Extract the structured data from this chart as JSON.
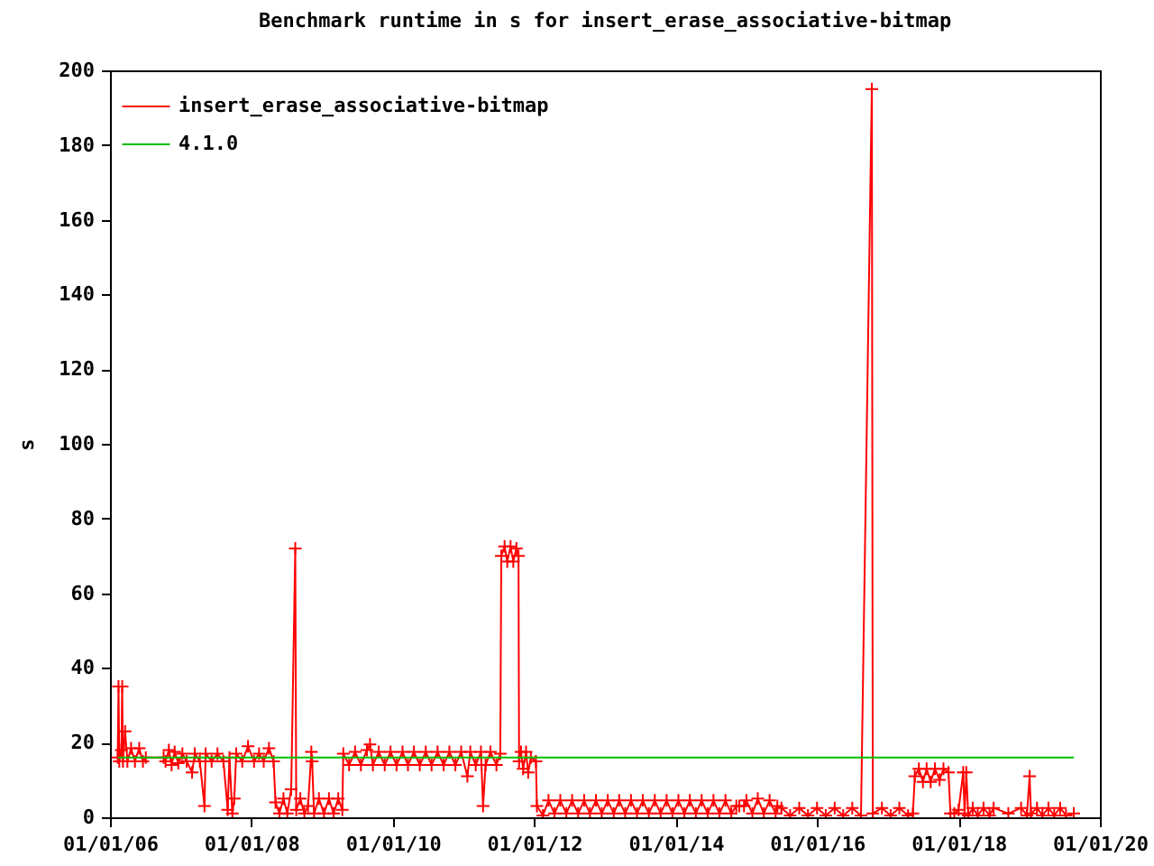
{
  "chart_data": {
    "type": "line",
    "title": "Benchmark runtime in s for insert_erase_associative-bitmap",
    "ylabel": "s",
    "xlim": [
      "2006-01-01",
      "2020-01-01"
    ],
    "xticks": [
      {
        "value": "2006-01-01",
        "label": "01/01/06"
      },
      {
        "value": "2008-01-01",
        "label": "01/01/08"
      },
      {
        "value": "2010-01-01",
        "label": "01/01/10"
      },
      {
        "value": "2012-01-01",
        "label": "01/01/12"
      },
      {
        "value": "2014-01-01",
        "label": "01/01/14"
      },
      {
        "value": "2016-01-01",
        "label": "01/01/16"
      },
      {
        "value": "2018-01-01",
        "label": "01/01/18"
      },
      {
        "value": "2020-01-01",
        "label": "01/01/20"
      }
    ],
    "ylim": [
      0,
      200
    ],
    "yticks": [
      0,
      20,
      40,
      60,
      80,
      100,
      120,
      140,
      160,
      180,
      200
    ],
    "grid": false,
    "legend": "top left",
    "marker": "cross",
    "line_style": "solid",
    "series": [
      {
        "name": "insert_erase_associative-bitmap",
        "color": "#ff0000",
        "x": [
          "2006-02-10",
          "2006-02-14",
          "2006-02-18",
          "2006-03-01",
          "2006-03-05",
          "2006-03-09",
          "2006-03-20",
          "2006-04-01",
          "2006-04-20",
          "2006-05-10",
          "2006-06-01",
          "2006-06-20",
          "2006-07-05",
          "2006-10-05",
          "2006-10-15",
          "2006-11-01",
          "2006-11-15",
          "2006-12-01",
          "2006-12-20",
          "2007-01-10",
          "2007-02-01",
          "2007-03-01",
          "2007-03-15",
          "2007-04-10",
          "2007-05-04",
          "2007-05-10",
          "2007-06-10",
          "2007-07-10",
          "2007-08-10",
          "2007-09-01",
          "2007-09-10",
          "2007-09-25",
          "2007-10-05",
          "2007-10-15",
          "2007-11-15",
          "2007-12-15",
          "2008-01-15",
          "2008-02-10",
          "2008-03-05",
          "2008-04-01",
          "2008-04-25",
          "2008-05-05",
          "2008-05-25",
          "2008-06-15",
          "2008-07-05",
          "2008-07-25",
          "2008-08-15",
          "2008-08-20",
          "2008-09-10",
          "2008-10-01",
          "2008-10-20",
          "2008-11-06",
          "2008-11-10",
          "2008-11-20",
          "2008-12-15",
          "2009-01-10",
          "2009-02-05",
          "2009-03-01",
          "2009-03-25",
          "2009-04-15",
          "2009-04-20",
          "2009-05-20",
          "2009-06-20",
          "2009-07-20",
          "2009-08-20",
          "2009-09-05",
          "2009-09-20",
          "2009-10-20",
          "2009-11-20",
          "2009-12-20",
          "2010-01-20",
          "2010-02-20",
          "2010-03-20",
          "2010-04-20",
          "2010-05-20",
          "2010-06-20",
          "2010-07-20",
          "2010-08-20",
          "2010-09-20",
          "2010-10-20",
          "2010-11-20",
          "2010-12-20",
          "2011-01-21",
          "2011-02-05",
          "2011-03-05",
          "2011-04-01",
          "2011-04-12",
          "2011-04-25",
          "2011-05-20",
          "2011-06-20",
          "2011-07-10",
          "2011-07-15",
          "2011-08-01",
          "2011-08-15",
          "2011-09-01",
          "2011-09-15",
          "2011-10-01",
          "2011-10-12",
          "2011-10-15",
          "2011-10-25",
          "2011-11-05",
          "2011-11-20",
          "2011-12-01",
          "2011-12-15",
          "2012-01-10",
          "2012-01-15",
          "2012-02-15",
          "2012-03-15",
          "2012-04-15",
          "2012-05-15",
          "2012-06-15",
          "2012-07-15",
          "2012-08-15",
          "2012-09-15",
          "2012-10-15",
          "2012-11-15",
          "2012-12-15",
          "2013-01-15",
          "2013-02-15",
          "2013-03-15",
          "2013-04-15",
          "2013-05-15",
          "2013-06-15",
          "2013-07-15",
          "2013-08-15",
          "2013-09-15",
          "2013-10-15",
          "2013-11-15",
          "2013-12-15",
          "2014-01-15",
          "2014-02-15",
          "2014-03-15",
          "2014-04-15",
          "2014-05-15",
          "2014-06-15",
          "2014-07-15",
          "2014-08-15",
          "2014-09-15",
          "2014-10-15",
          "2014-11-10",
          "2014-11-25",
          "2014-12-20",
          "2015-01-01",
          "2015-02-01",
          "2015-03-01",
          "2015-04-01",
          "2015-05-01",
          "2015-06-01",
          "2015-06-10",
          "2015-07-01",
          "2015-08-15",
          "2015-10-01",
          "2015-11-15",
          "2016-01-01",
          "2016-02-15",
          "2016-04-01",
          "2016-05-15",
          "2016-07-01",
          "2016-08-15",
          "2016-10-10",
          "2016-10-15",
          "2016-12-01",
          "2017-01-15",
          "2017-03-01",
          "2017-04-15",
          "2017-05-10",
          "2017-05-20",
          "2017-06-10",
          "2017-07-01",
          "2017-07-20",
          "2017-08-10",
          "2017-09-01",
          "2017-09-25",
          "2017-10-15",
          "2017-11-10",
          "2017-11-20",
          "2017-12-10",
          "2018-01-01",
          "2018-01-25",
          "2018-02-01",
          "2018-02-10",
          "2018-02-20",
          "2018-03-15",
          "2018-04-10",
          "2018-05-10",
          "2018-06-10",
          "2018-07-01",
          "2018-09-15",
          "2018-11-20",
          "2018-12-20",
          "2019-01-03",
          "2019-01-10",
          "2019-02-10",
          "2019-03-10",
          "2019-04-10",
          "2019-05-10",
          "2019-06-10",
          "2019-07-10",
          "2019-08-19"
        ],
        "values": [
          16,
          35,
          15,
          18,
          35,
          15,
          23,
          15,
          18.5,
          15,
          18.5,
          15,
          16,
          16,
          15,
          18,
          14,
          17.5,
          14.5,
          17,
          15,
          12,
          17,
          15,
          3,
          17,
          15,
          17,
          15,
          2,
          16,
          1,
          5,
          17,
          15,
          19,
          15,
          17,
          15,
          18.5,
          15,
          4,
          1,
          5,
          1,
          7.5,
          72,
          2,
          5,
          1,
          3,
          17.5,
          15,
          1,
          5,
          1,
          5,
          1,
          5,
          2,
          17,
          14,
          17.5,
          14,
          18,
          19.5,
          14,
          17.5,
          14,
          17.5,
          14,
          17.5,
          14,
          17.5,
          14,
          17.5,
          14,
          17.5,
          14,
          17.5,
          14,
          17.5,
          11,
          17.5,
          14,
          17.5,
          3,
          14,
          17.5,
          14,
          17,
          70,
          72.5,
          68.5,
          72.5,
          68.5,
          72,
          70,
          15,
          17.5,
          13,
          17.5,
          12,
          16,
          15,
          3,
          0.5,
          4.5,
          1,
          4.5,
          1,
          4.5,
          1,
          4.5,
          1,
          4.5,
          1,
          4.5,
          1,
          4.5,
          1,
          4.5,
          1,
          4.5,
          1,
          4.5,
          1,
          4.5,
          1,
          4.5,
          1,
          4.5,
          1,
          4.5,
          1,
          4.5,
          1,
          4.5,
          1,
          3,
          3,
          3,
          4.5,
          1,
          5,
          1,
          4.5,
          1,
          3,
          2.5,
          0.5,
          2.5,
          0.5,
          2.5,
          0.5,
          2.5,
          0.5,
          2.5,
          0.5,
          195,
          1,
          2.5,
          0.5,
          2.5,
          0.5,
          1,
          11,
          13,
          9.5,
          13,
          9.5,
          13,
          10,
          13,
          12,
          1,
          1,
          2,
          12,
          1,
          12,
          0.5,
          2.5,
          0.5,
          2.5,
          0.5,
          2.5,
          1,
          2.5,
          0.5,
          11,
          1,
          2.5,
          0.5,
          2.5,
          0.5,
          2.5,
          0.5,
          1
        ]
      },
      {
        "name": "4.1.0",
        "color": "#00c000",
        "marker": "none",
        "x": [
          "2006-02-10",
          "2019-08-19"
        ],
        "values": [
          16,
          16
        ]
      }
    ]
  }
}
